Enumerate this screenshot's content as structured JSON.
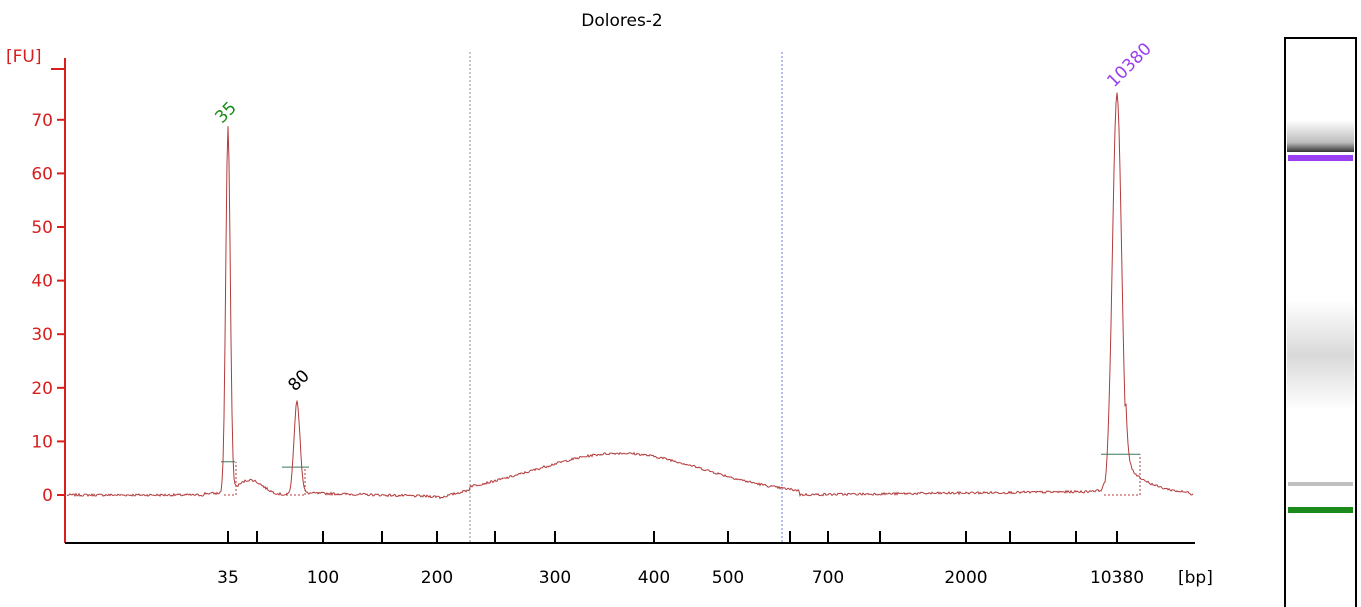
{
  "chart_data": {
    "type": "line",
    "title": "Dolores-2",
    "ylabel": "[FU]",
    "xlabel": "[bp]",
    "ylim": [
      -9,
      83
    ],
    "yticks": [
      0,
      10,
      20,
      30,
      40,
      50,
      60,
      70
    ],
    "xticks": [
      "35",
      "100",
      "200",
      "300",
      "400",
      "500",
      "700",
      "2000",
      "10380"
    ],
    "colors": {
      "axis": "#d81e1e",
      "trace": "#b33a3a",
      "marker_35": "#1a8a1a",
      "marker_10380": "#9a3ff0",
      "marker_80": "#000000",
      "region_left": "#8f8f8f",
      "region_right": "#6f7fe0"
    },
    "peaks": [
      {
        "label": "35",
        "height": 68,
        "color": "#1a8a1a"
      },
      {
        "label": "80",
        "height": 17.5,
        "color": "#000000"
      },
      {
        "label": "10380",
        "height": 75,
        "color": "#9a3ff0"
      }
    ],
    "series": [
      {
        "points": [
          [
            "<35",
            0
          ],
          [
            "35",
            68
          ],
          [
            "35+",
            3
          ],
          [
            "80",
            17.5
          ],
          [
            "80+",
            0.3
          ],
          [
            "200",
            -0.5
          ],
          [
            "300",
            5.5
          ],
          [
            "400",
            7.5
          ],
          [
            "500",
            5
          ],
          [
            "700",
            0
          ],
          [
            "2000",
            0
          ],
          [
            "10380",
            75
          ],
          [
            ">10380",
            0.5
          ]
        ]
      }
    ]
  },
  "gel": {
    "bands": [
      {
        "name": "upper-marker",
        "color": "#9a3ff0",
        "position": 0.22
      },
      {
        "name": "smear",
        "color": "#cfcfcf",
        "position": 0.56
      },
      {
        "name": "sample-band",
        "color": "#c0c0c0",
        "position": 0.86
      },
      {
        "name": "lower-marker",
        "color": "#1a8a1a",
        "position": 0.89
      }
    ]
  }
}
